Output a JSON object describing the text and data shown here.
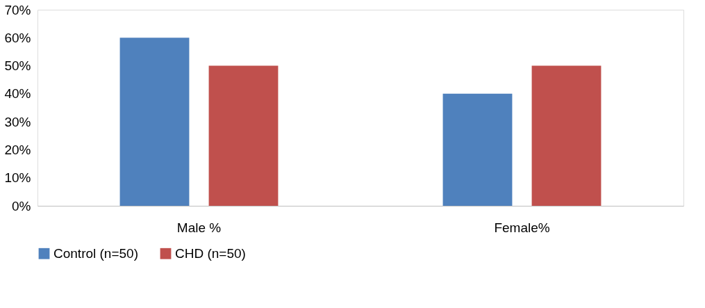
{
  "chart_data": {
    "type": "bar",
    "categories": [
      "Male %",
      "Female%"
    ],
    "series": [
      {
        "name": "Control (n=50)",
        "color": "#4f81bd",
        "values": [
          60,
          40
        ]
      },
      {
        "name": "CHD (n=50)",
        "color": "#c0504d",
        "values": [
          50,
          50
        ]
      }
    ],
    "ylim": [
      0,
      70
    ],
    "yticks": [
      {
        "value": 0,
        "label": "0%"
      },
      {
        "value": 10,
        "label": "10%"
      },
      {
        "value": 20,
        "label": "20%"
      },
      {
        "value": 30,
        "label": "30%"
      },
      {
        "value": 40,
        "label": "40%"
      },
      {
        "value": 50,
        "label": "50%"
      },
      {
        "value": 60,
        "label": "60%"
      },
      {
        "value": 70,
        "label": "70%"
      }
    ],
    "legend": "bottom",
    "grid": false
  }
}
